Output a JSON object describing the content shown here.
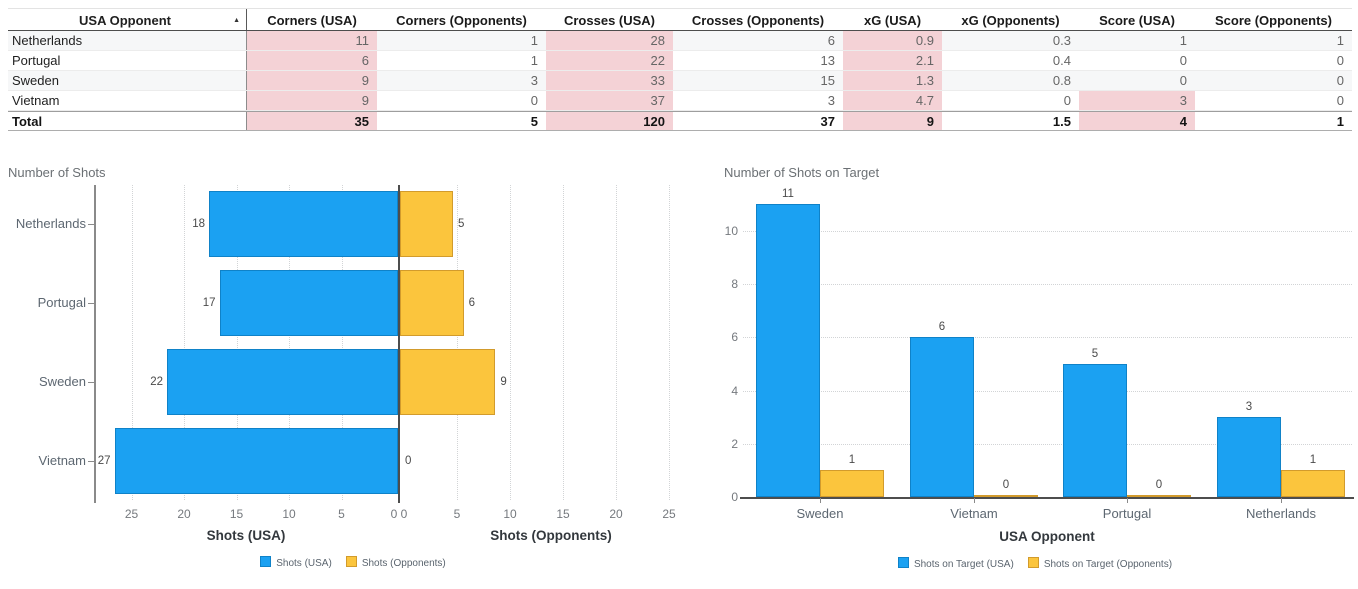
{
  "colors": {
    "highlight_pink": "#f4d2d6",
    "stripe_gray": "#f6f7f8",
    "bar_blue": "#1ba1f2",
    "bar_blue_border": "#0f82c8",
    "bar_yellow": "#fbc53d",
    "bar_yellow_border": "#d29b2c"
  },
  "table": {
    "sort_glyph": "▲",
    "columns": [
      "USA Opponent",
      "Corners (USA)",
      "Corners (Opponents)",
      "Crosses (USA)",
      "Crosses (Opponents)",
      "xG (USA)",
      "xG (Opponents)",
      "Score (USA)",
      "Score (Opponents)"
    ],
    "rows": [
      {
        "opponent": "Netherlands",
        "values": [
          "11",
          "1",
          "28",
          "6",
          "0.9",
          "0.3",
          "1",
          "1"
        ],
        "highlighted": [
          true,
          false,
          true,
          false,
          true,
          false,
          false,
          false
        ],
        "striped": true
      },
      {
        "opponent": "Portugal",
        "values": [
          "6",
          "1",
          "22",
          "13",
          "2.1",
          "0.4",
          "0",
          "0"
        ],
        "highlighted": [
          true,
          false,
          true,
          false,
          true,
          false,
          false,
          false
        ],
        "striped": false
      },
      {
        "opponent": "Sweden",
        "values": [
          "9",
          "3",
          "33",
          "15",
          "1.3",
          "0.8",
          "0",
          "0"
        ],
        "highlighted": [
          true,
          false,
          true,
          false,
          true,
          false,
          false,
          false
        ],
        "striped": true
      },
      {
        "opponent": "Vietnam",
        "values": [
          "9",
          "0",
          "37",
          "3",
          "4.7",
          "0",
          "3",
          "0"
        ],
        "highlighted": [
          true,
          false,
          true,
          false,
          true,
          false,
          true,
          false
        ],
        "striped": false
      }
    ],
    "total_row": {
      "opponent": "Total",
      "values": [
        "35",
        "5",
        "120",
        "37",
        "9",
        "1.5",
        "4",
        "1"
      ],
      "highlighted": [
        true,
        false,
        true,
        false,
        true,
        false,
        true,
        false
      ]
    }
  },
  "chart_data": [
    {
      "type": "bar",
      "subtype": "horizontal-diverging-butterfly",
      "title": "Number of Shots",
      "categories": [
        "Netherlands",
        "Portugal",
        "Sweden",
        "Vietnam"
      ],
      "series": [
        {
          "name": "Shots (USA)",
          "side": "left",
          "values": [
            18,
            17,
            22,
            27
          ],
          "axis_title": "Shots (USA)"
        },
        {
          "name": "Shots (Opponents)",
          "side": "right",
          "values": [
            5,
            6,
            9,
            0
          ],
          "axis_title": "Shots (Opponents)"
        }
      ],
      "x_tick_labels_left": [
        "25",
        "20",
        "15",
        "10",
        "5",
        "0"
      ],
      "x_tick_labels_right": [
        "0",
        "5",
        "10",
        "15",
        "20",
        "25"
      ],
      "xlim_each_side": [
        0,
        28.6
      ],
      "grid": "vertical-dotted",
      "legend": [
        "Shots (USA)",
        "Shots (Opponents)"
      ],
      "legend_position": "bottom"
    },
    {
      "type": "bar",
      "subtype": "vertical-grouped",
      "title": "Number of Shots on Target",
      "categories": [
        "Sweden",
        "Vietnam",
        "Portugal",
        "Netherlands"
      ],
      "series": [
        {
          "name": "Shots on Target (USA)",
          "values": [
            11,
            6,
            5,
            3
          ]
        },
        {
          "name": "Shots on Target (Opponents)",
          "values": [
            1,
            0,
            0,
            1
          ]
        }
      ],
      "xlabel": "USA Opponent",
      "y_tick_labels": [
        "0",
        "2",
        "4",
        "6",
        "8",
        "10"
      ],
      "ylim": [
        0,
        11.7
      ],
      "grid": "horizontal-dotted",
      "legend": [
        "Shots on Target (USA)",
        "Shots on Target (Opponents)"
      ],
      "legend_position": "bottom"
    }
  ]
}
